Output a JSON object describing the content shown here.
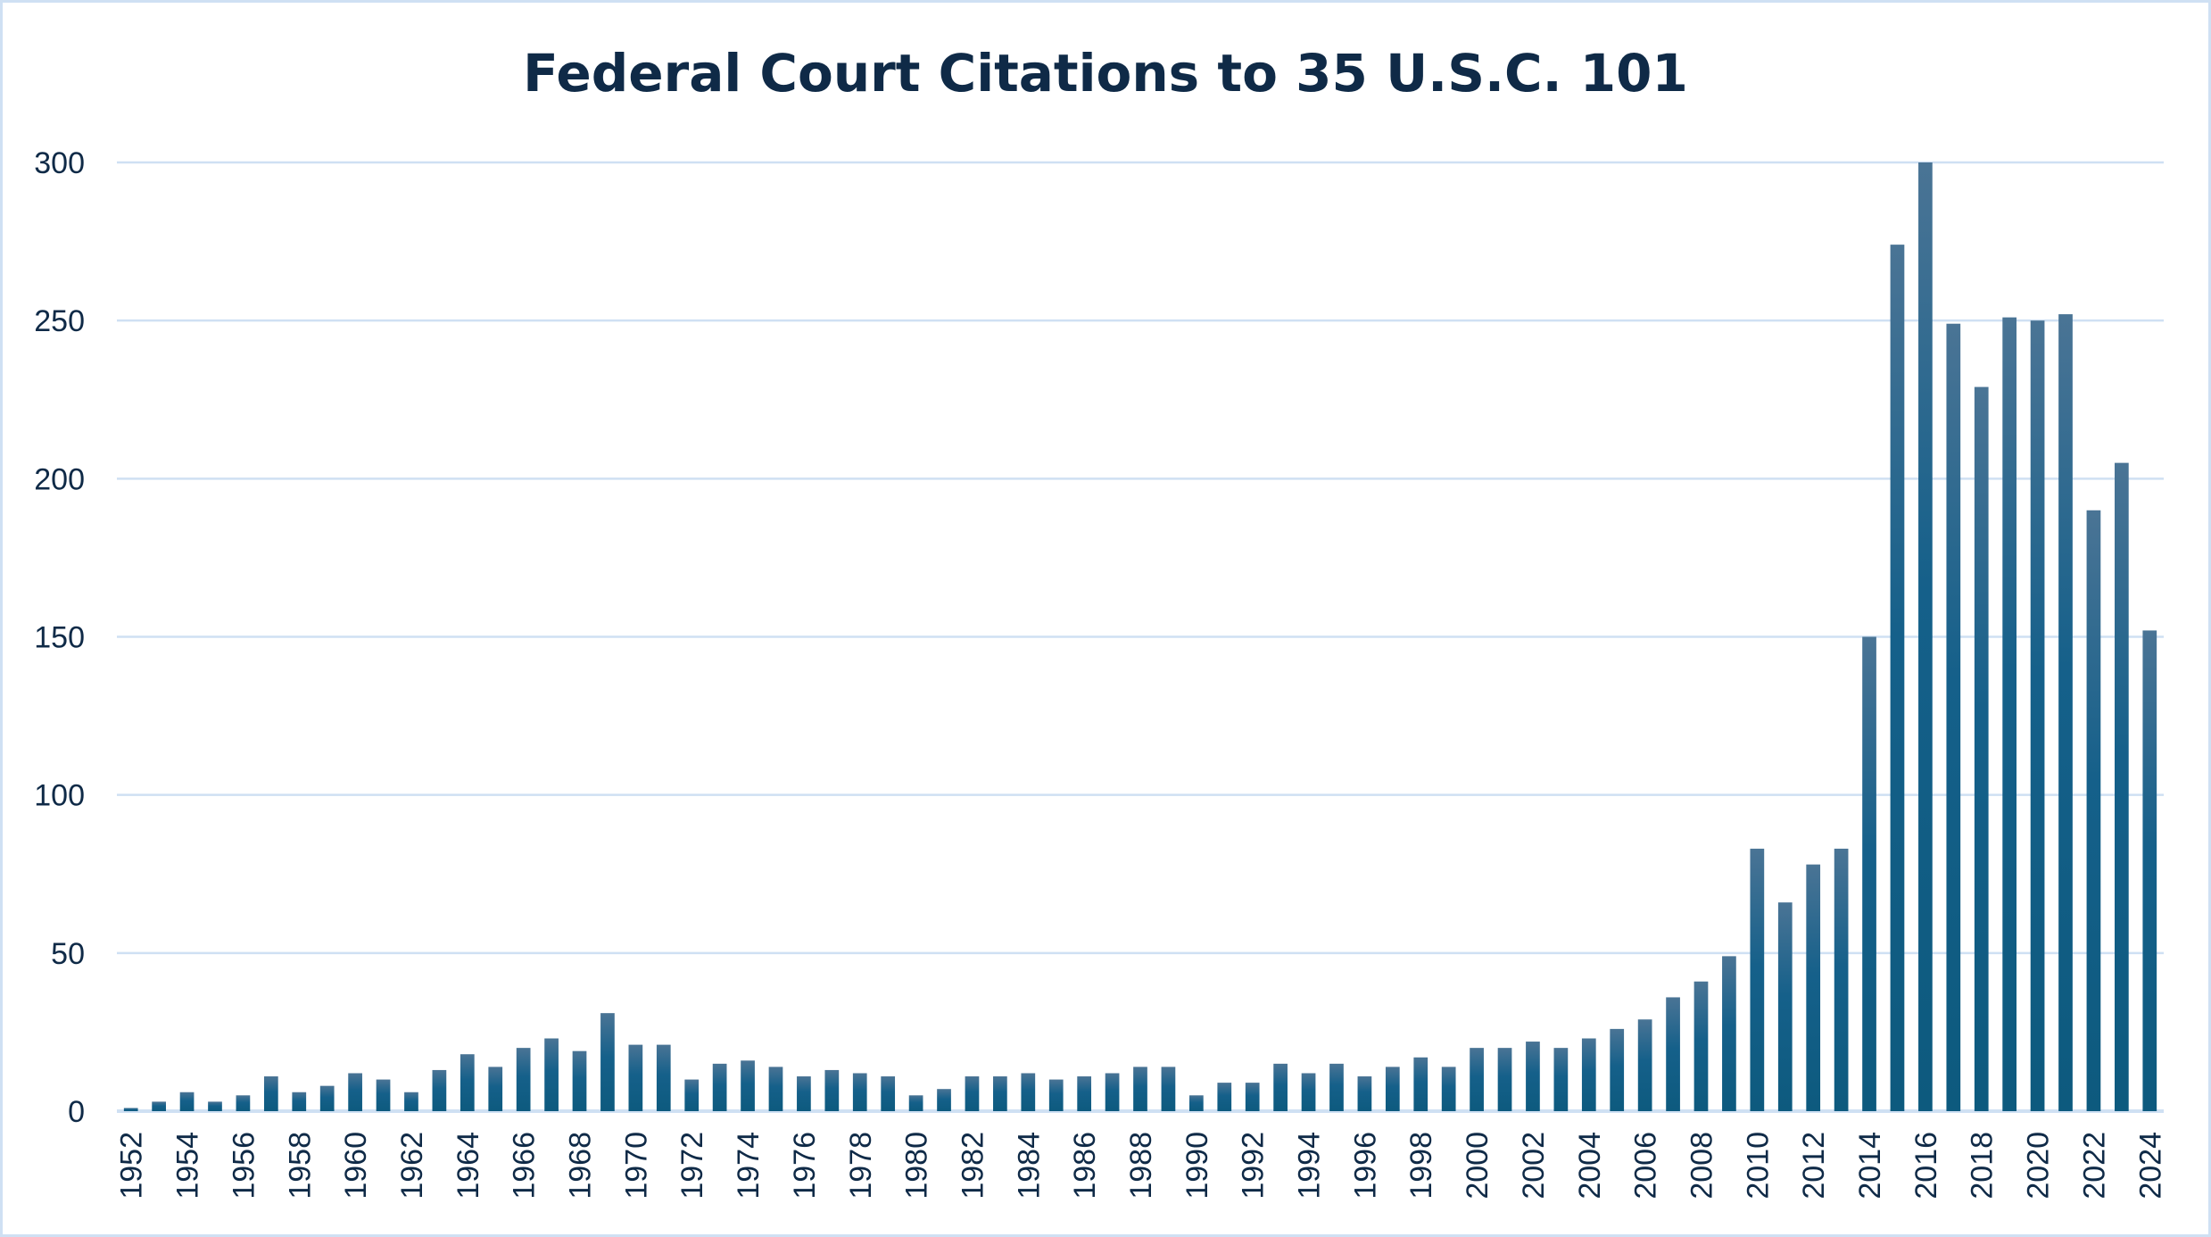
{
  "chart_data": {
    "type": "bar",
    "title": "Federal Court Citations to 35 U.S.C. 101",
    "xlabel": "",
    "ylabel": "",
    "ylim": [
      0,
      300
    ],
    "yticks": [
      0,
      50,
      100,
      150,
      200,
      250,
      300
    ],
    "grid": true,
    "legend": "none",
    "categories": [
      "1952",
      "1953",
      "1954",
      "1955",
      "1956",
      "1957",
      "1958",
      "1959",
      "1960",
      "1961",
      "1962",
      "1963",
      "1964",
      "1965",
      "1966",
      "1967",
      "1968",
      "1969",
      "1970",
      "1971",
      "1972",
      "1973",
      "1974",
      "1975",
      "1976",
      "1977",
      "1978",
      "1979",
      "1980",
      "1981",
      "1982",
      "1983",
      "1984",
      "1985",
      "1986",
      "1987",
      "1988",
      "1989",
      "1990",
      "1991",
      "1992",
      "1993",
      "1994",
      "1995",
      "1996",
      "1997",
      "1998",
      "1999",
      "2000",
      "2001",
      "2002",
      "2003",
      "2004",
      "2005",
      "2006",
      "2007",
      "2008",
      "2009",
      "2010",
      "2011",
      "2012",
      "2013",
      "2014",
      "2015",
      "2016",
      "2017",
      "2018",
      "2019",
      "2020",
      "2021",
      "2022",
      "2023",
      "2024"
    ],
    "values": [
      1,
      3,
      6,
      3,
      5,
      11,
      6,
      8,
      12,
      10,
      6,
      13,
      18,
      14,
      20,
      23,
      19,
      31,
      21,
      21,
      10,
      15,
      16,
      14,
      11,
      13,
      12,
      11,
      5,
      7,
      11,
      11,
      12,
      10,
      11,
      12,
      14,
      14,
      5,
      9,
      9,
      15,
      12,
      15,
      11,
      14,
      17,
      14,
      20,
      20,
      22,
      20,
      23,
      26,
      29,
      36,
      41,
      49,
      83,
      66,
      78,
      83,
      150,
      274,
      300,
      249,
      229,
      251,
      250,
      252,
      190,
      205,
      152
    ],
    "colors": {
      "bar_top": "#4a7495",
      "bar_bottom": "#0d5a7e",
      "grid": "#cfe0f3",
      "text": "#0f2a47"
    }
  }
}
